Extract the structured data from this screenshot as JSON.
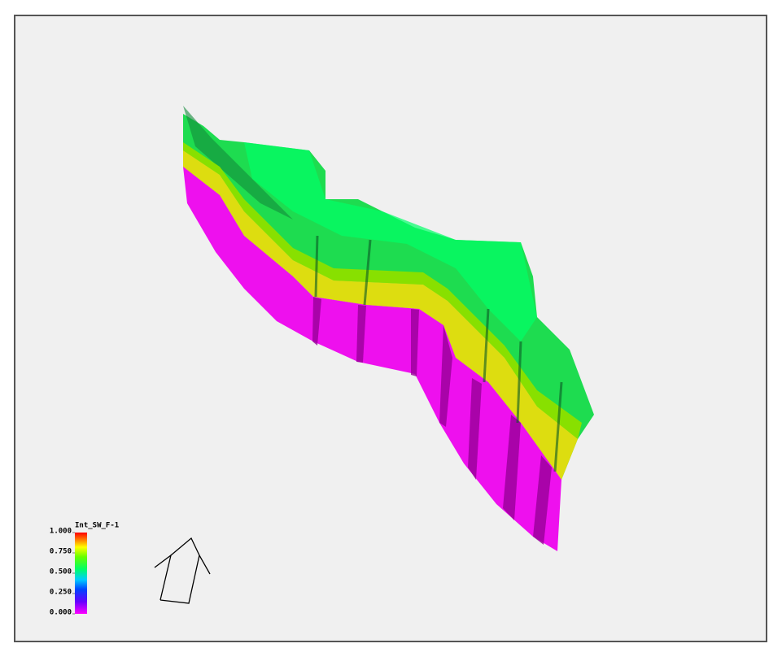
{
  "viewer": {
    "colorbar": {
      "title": "Int_SW_F-1",
      "lim": [
        0,
        1
      ],
      "ticks": [
        {
          "value": 1,
          "label": "1.000"
        },
        {
          "value": 0.75,
          "label": "0.750"
        },
        {
          "value": 0.5,
          "label": "0.500"
        },
        {
          "value": 0.25,
          "label": "0.250"
        },
        {
          "value": 0,
          "label": "0.000"
        }
      ]
    }
  }
}
